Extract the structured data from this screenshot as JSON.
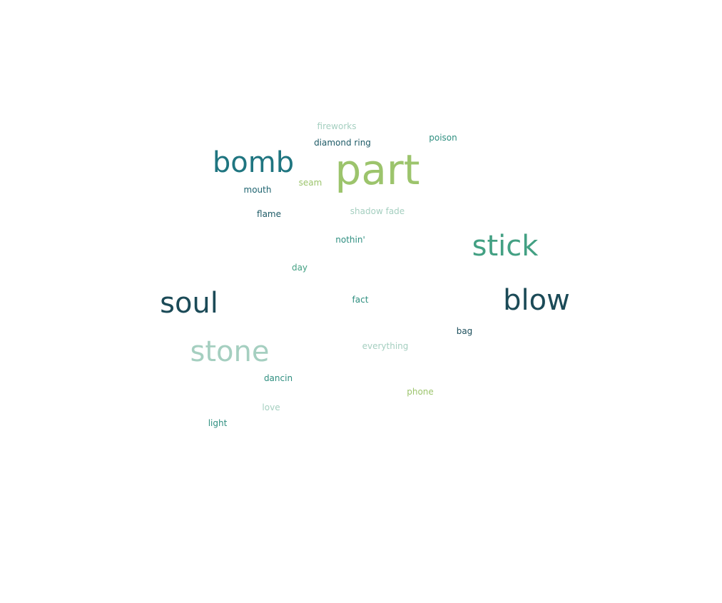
{
  "chart_data": {
    "type": "wordcloud",
    "palette": {
      "dark_teal": "#1d4f5c",
      "teal": "#1f7a80",
      "green_teal": "#43a083",
      "light_green": "#9dc86a",
      "pale_teal": "#a7cfc0"
    },
    "words": [
      {
        "text": "part",
        "color": "#9cc46c"
      },
      {
        "text": "bomb",
        "color": "#1f7580"
      },
      {
        "text": "stick",
        "color": "#43a083"
      },
      {
        "text": "blow",
        "color": "#1b4a57"
      },
      {
        "text": "soul",
        "color": "#1b4a57"
      },
      {
        "text": "stone",
        "color": "#a5cfc0"
      },
      {
        "text": "fireworks",
        "color": "#a5cfc0"
      },
      {
        "text": "diamond ring",
        "color": "#1d5a66"
      },
      {
        "text": "poison",
        "color": "#2f8f80"
      },
      {
        "text": "seam",
        "color": "#9cc46c"
      },
      {
        "text": "mouth",
        "color": "#1f6470"
      },
      {
        "text": "shadow fade",
        "color": "#a5cfc0"
      },
      {
        "text": "flame",
        "color": "#1d5a66"
      },
      {
        "text": "nothin'",
        "color": "#2f8f80"
      },
      {
        "text": "day",
        "color": "#43a083"
      },
      {
        "text": "fact",
        "color": "#2f8f80"
      },
      {
        "text": "bag",
        "color": "#1d4f5c"
      },
      {
        "text": "everything",
        "color": "#a5cfc0"
      },
      {
        "text": "dancin",
        "color": "#2f8f80"
      },
      {
        "text": "phone",
        "color": "#9cc46c"
      },
      {
        "text": "love",
        "color": "#a5cfc0"
      },
      {
        "text": "light",
        "color": "#2f8f80"
      }
    ]
  }
}
